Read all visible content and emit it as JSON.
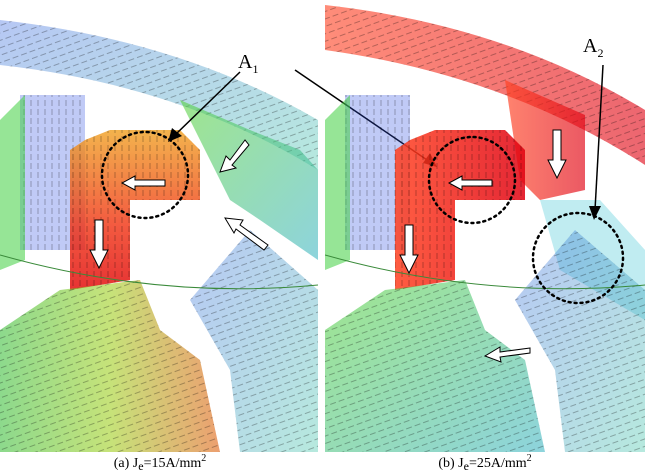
{
  "labels": [
    {
      "base": "A",
      "sub": "1"
    },
    {
      "base": "A",
      "sub": "2"
    }
  ],
  "captions": [
    {
      "prefix": "(a) J",
      "sub": "e",
      "mid": "=15A/mm",
      "sup": "2"
    },
    {
      "prefix": "(b) J",
      "sub": "e",
      "mid": "=25A/mm",
      "sup": "2"
    }
  ]
}
